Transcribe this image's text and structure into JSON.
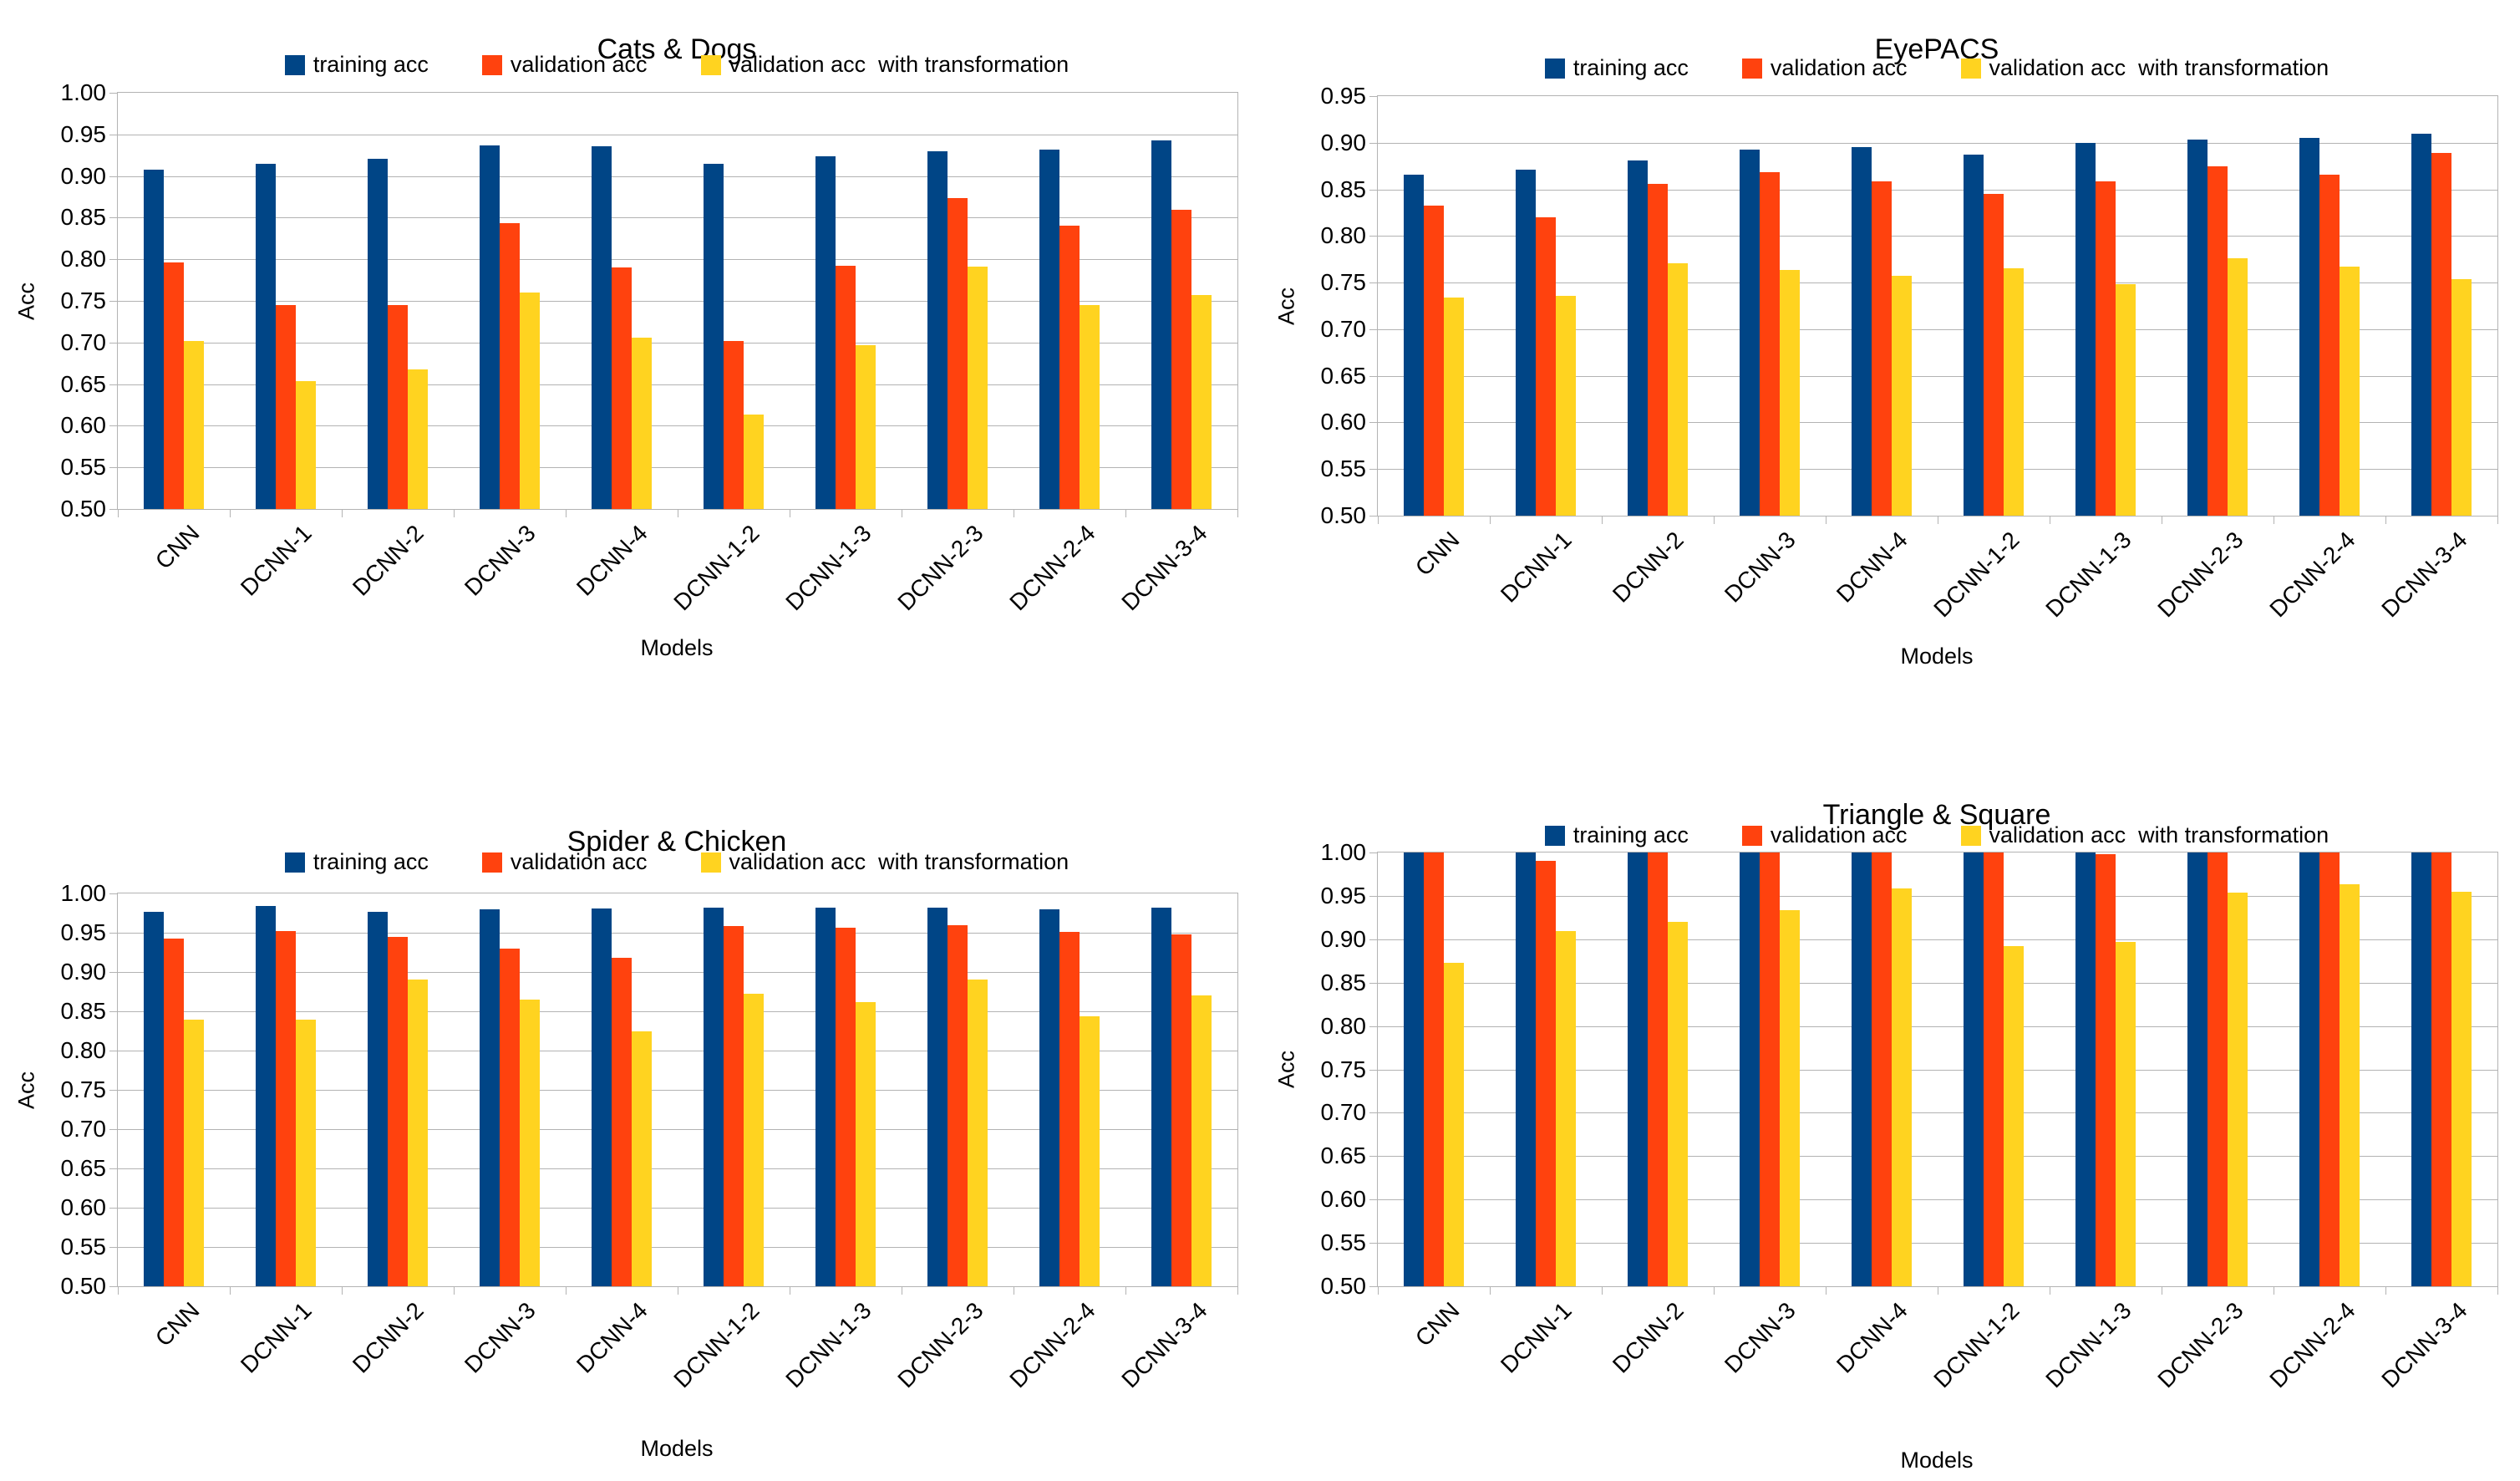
{
  "colors": {
    "training": "#004586",
    "validation": "#FF420E",
    "validation_transform": "#FFD320",
    "grid": "#B3B3B3",
    "text": "#000000",
    "background": "#FFFFFF"
  },
  "legend_labels": [
    "training acc",
    "validation acc",
    "validation acc  with transformation"
  ],
  "chart_data": [
    {
      "type": "bar",
      "title": "Cats & Dogs",
      "xlabel": "Models",
      "ylabel": "Acc",
      "ylim": [
        0.5,
        1.0
      ],
      "ytick_step": 0.05,
      "grid": true,
      "legend_position": "top",
      "categories": [
        "CNN",
        "DCNN-1",
        "DCNN-2",
        "DCNN-3",
        "DCNN-4",
        "DCNN-1-2",
        "DCNN-1-3",
        "DCNN-2-3",
        "DCNN-2-4",
        "DCNN-3-4"
      ],
      "series": [
        {
          "name": "training acc",
          "color": "#004586",
          "values": [
            0.908,
            0.915,
            0.921,
            0.937,
            0.936,
            0.915,
            0.924,
            0.93,
            0.932,
            0.943
          ]
        },
        {
          "name": "validation acc",
          "color": "#FF420E",
          "values": [
            0.796,
            0.745,
            0.745,
            0.843,
            0.79,
            0.702,
            0.792,
            0.874,
            0.84,
            0.859
          ]
        },
        {
          "name": "validation acc  with transformation",
          "color": "#FFD320",
          "values": [
            0.702,
            0.654,
            0.668,
            0.76,
            0.706,
            0.613,
            0.697,
            0.791,
            0.745,
            0.757
          ]
        }
      ]
    },
    {
      "type": "bar",
      "title": "EyePACS",
      "xlabel": "Models",
      "ylabel": "Acc",
      "ylim": [
        0.5,
        0.95
      ],
      "ytick_step": 0.05,
      "grid": true,
      "legend_position": "top",
      "categories": [
        "CNN",
        "DCNN-1",
        "DCNN-2",
        "DCNN-3",
        "DCNN-4",
        "DCNN-1-2",
        "DCNN-1-3",
        "DCNN-2-3",
        "DCNN-2-4",
        "DCNN-3-4"
      ],
      "series": [
        {
          "name": "training acc",
          "color": "#004586",
          "values": [
            0.866,
            0.871,
            0.881,
            0.893,
            0.895,
            0.887,
            0.9,
            0.903,
            0.905,
            0.91
          ]
        },
        {
          "name": "validation acc",
          "color": "#FF420E",
          "values": [
            0.833,
            0.82,
            0.856,
            0.868,
            0.859,
            0.845,
            0.859,
            0.875,
            0.866,
            0.889
          ]
        },
        {
          "name": "validation acc  with transformation",
          "color": "#FFD320",
          "values": [
            0.734,
            0.736,
            0.771,
            0.764,
            0.757,
            0.765,
            0.748,
            0.776,
            0.767,
            0.754
          ]
        }
      ]
    },
    {
      "type": "bar",
      "title": "Spider & Chicken",
      "xlabel": "Models",
      "ylabel": "Acc",
      "ylim": [
        0.5,
        1.0
      ],
      "ytick_step": 0.05,
      "grid": true,
      "legend_position": "top",
      "categories": [
        "CNN",
        "DCNN-1",
        "DCNN-2",
        "DCNN-3",
        "DCNN-4",
        "DCNN-1-2",
        "DCNN-1-3",
        "DCNN-2-3",
        "DCNN-2-4",
        "DCNN-3-4"
      ],
      "series": [
        {
          "name": "training acc",
          "color": "#004586",
          "values": [
            0.977,
            0.984,
            0.977,
            0.98,
            0.981,
            0.982,
            0.982,
            0.982,
            0.98,
            0.982
          ]
        },
        {
          "name": "validation acc",
          "color": "#FF420E",
          "values": [
            0.943,
            0.952,
            0.945,
            0.93,
            0.918,
            0.958,
            0.956,
            0.96,
            0.951,
            0.948
          ]
        },
        {
          "name": "validation acc  with transformation",
          "color": "#FFD320",
          "values": [
            0.839,
            0.839,
            0.89,
            0.865,
            0.825,
            0.872,
            0.862,
            0.89,
            0.844,
            0.87
          ]
        }
      ]
    },
    {
      "type": "bar",
      "title": "Triangle & Square",
      "xlabel": "Models",
      "ylabel": "Acc",
      "ylim": [
        0.5,
        1.0
      ],
      "ytick_step": 0.05,
      "grid": true,
      "legend_position": "top",
      "categories": [
        "CNN",
        "DCNN-1",
        "DCNN-2",
        "DCNN-3",
        "DCNN-4",
        "DCNN-1-2",
        "DCNN-1-3",
        "DCNN-2-3",
        "DCNN-2-4",
        "DCNN-3-4"
      ],
      "series": [
        {
          "name": "training acc",
          "color": "#004586",
          "values": [
            1.0,
            1.0,
            1.0,
            1.0,
            1.0,
            1.0,
            1.0,
            1.0,
            1.0,
            1.0
          ]
        },
        {
          "name": "validation acc",
          "color": "#FF420E",
          "values": [
            1.0,
            0.99,
            1.0,
            1.0,
            1.0,
            1.0,
            0.998,
            1.0,
            1.0,
            1.0
          ]
        },
        {
          "name": "validation acc  with transformation",
          "color": "#FFD320",
          "values": [
            0.873,
            0.909,
            0.92,
            0.934,
            0.959,
            0.892,
            0.897,
            0.954,
            0.963,
            0.955
          ]
        }
      ]
    }
  ]
}
